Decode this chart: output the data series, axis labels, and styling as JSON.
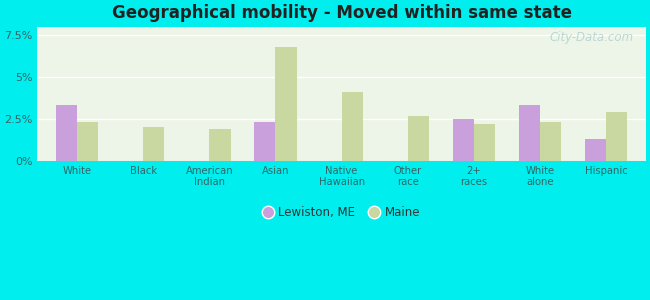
{
  "title": "Geographical mobility - Moved within same state",
  "categories": [
    "White",
    "Black",
    "American\nIndian",
    "Asian",
    "Native\nHawaiian",
    "Other\nrace",
    "2+\nraces",
    "White\nalone",
    "Hispanic"
  ],
  "lewiston_values": [
    3.3,
    0.0,
    0.0,
    2.3,
    0.0,
    0.0,
    2.5,
    3.3,
    1.3
  ],
  "maine_values": [
    2.3,
    2.0,
    1.9,
    6.8,
    4.1,
    2.7,
    2.2,
    2.3,
    2.9
  ],
  "lewiston_color": "#c9a0dc",
  "maine_color": "#c8d8a0",
  "background_top": "#e8f5e8",
  "background_bottom": "#f5faf0",
  "outer_background": "#00eeee",
  "ylim": [
    0,
    8.0
  ],
  "yticks": [
    0,
    2.5,
    5.0,
    7.5
  ],
  "ytick_labels": [
    "0%",
    "2.5%",
    "5%",
    "7.5%"
  ],
  "legend_lewiston": "Lewiston, ME",
  "legend_maine": "Maine",
  "bar_width": 0.32,
  "watermark": "City-Data.com"
}
